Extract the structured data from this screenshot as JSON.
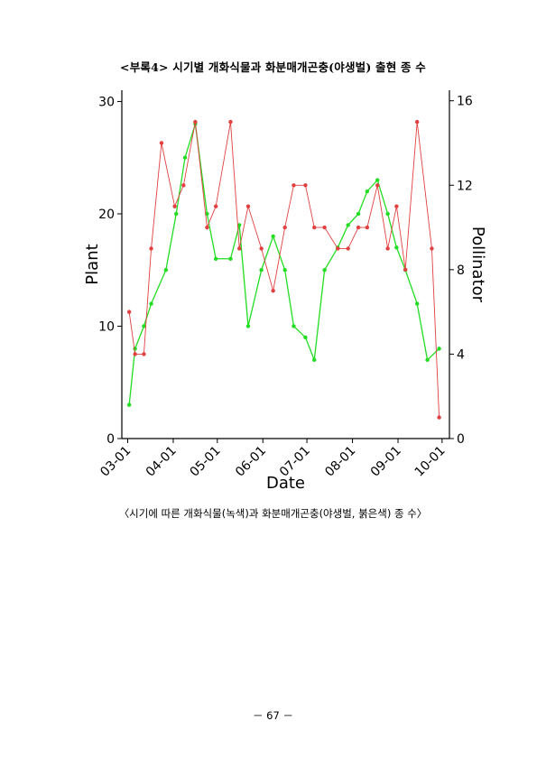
{
  "page": {
    "title": "<부록4> 시기별 개화식물과 화분매개곤충(야생벌) 출현 종 수",
    "caption": "〈시기에 따른 개화식물(녹색)과 화분매개곤충(야생벌, 붉은색) 종 수〉",
    "page_number": "－ 67 －"
  },
  "chart_data": {
    "type": "line",
    "xlabel": "Date",
    "ylabel_left": "Plant",
    "ylabel_right": "Pollinator",
    "x_range": [
      "2023-02-25",
      "2023-10-06"
    ],
    "ylim_left": [
      0,
      31
    ],
    "ylim_right": [
      0,
      16.5
    ],
    "yticks_left": [
      0,
      10,
      20,
      30
    ],
    "yticks_right": [
      0,
      4,
      8,
      12,
      16
    ],
    "x_ticks": [
      {
        "date": "2023-03-01",
        "label": "03-01"
      },
      {
        "date": "2023-04-01",
        "label": "04-01"
      },
      {
        "date": "2023-05-01",
        "label": "05-01"
      },
      {
        "date": "2023-06-01",
        "label": "06-01"
      },
      {
        "date": "2023-07-01",
        "label": "07-01"
      },
      {
        "date": "2023-08-01",
        "label": "08-01"
      },
      {
        "date": "2023-09-01",
        "label": "09-01"
      },
      {
        "date": "2023-10-01",
        "label": "10-01"
      }
    ],
    "grid": false,
    "series": [
      {
        "axis": "left",
        "color": "#22dd22",
        "points": [
          [
            "2023-03-02",
            3
          ],
          [
            "2023-03-06",
            8
          ],
          [
            "2023-03-12",
            10
          ],
          [
            "2023-03-17",
            12
          ],
          [
            "2023-03-27",
            15
          ],
          [
            "2023-04-03",
            20
          ],
          [
            "2023-04-09",
            25
          ],
          [
            "2023-04-16",
            28
          ],
          [
            "2023-04-24",
            20
          ],
          [
            "2023-04-30",
            16
          ],
          [
            "2023-05-10",
            16
          ],
          [
            "2023-05-16",
            19
          ],
          [
            "2023-05-22",
            10
          ],
          [
            "2023-05-31",
            15
          ],
          [
            "2023-06-08",
            18
          ],
          [
            "2023-06-16",
            15
          ],
          [
            "2023-06-22",
            10
          ],
          [
            "2023-06-30",
            9
          ],
          [
            "2023-07-06",
            7
          ],
          [
            "2023-07-13",
            15
          ],
          [
            "2023-07-22",
            17
          ],
          [
            "2023-07-29",
            19
          ],
          [
            "2023-08-05",
            20
          ],
          [
            "2023-08-11",
            22
          ],
          [
            "2023-08-18",
            23
          ],
          [
            "2023-08-25",
            20
          ],
          [
            "2023-08-31",
            17
          ],
          [
            "2023-09-06",
            15
          ],
          [
            "2023-09-14",
            12
          ],
          [
            "2023-09-21",
            7
          ],
          [
            "2023-09-29",
            8
          ]
        ]
      },
      {
        "axis": "right",
        "color": "#e04040",
        "points": [
          [
            "2023-03-02",
            6
          ],
          [
            "2023-03-06",
            4
          ],
          [
            "2023-03-12",
            4
          ],
          [
            "2023-03-17",
            9
          ],
          [
            "2023-03-24",
            14
          ],
          [
            "2023-04-02",
            11
          ],
          [
            "2023-04-08",
            12
          ],
          [
            "2023-04-16",
            15
          ],
          [
            "2023-04-24",
            10
          ],
          [
            "2023-04-30",
            11
          ],
          [
            "2023-05-10",
            15
          ],
          [
            "2023-05-16",
            9
          ],
          [
            "2023-05-22",
            11
          ],
          [
            "2023-05-31",
            9
          ],
          [
            "2023-06-08",
            7
          ],
          [
            "2023-06-16",
            10
          ],
          [
            "2023-06-22",
            12
          ],
          [
            "2023-06-30",
            12
          ],
          [
            "2023-07-06",
            10
          ],
          [
            "2023-07-13",
            10
          ],
          [
            "2023-07-22",
            9
          ],
          [
            "2023-07-29",
            9
          ],
          [
            "2023-08-05",
            10
          ],
          [
            "2023-08-11",
            10
          ],
          [
            "2023-08-18",
            12
          ],
          [
            "2023-08-25",
            9
          ],
          [
            "2023-08-31",
            11
          ],
          [
            "2023-09-06",
            8
          ],
          [
            "2023-09-14",
            15
          ],
          [
            "2023-09-24",
            9
          ],
          [
            "2023-09-29",
            1
          ]
        ]
      }
    ]
  }
}
